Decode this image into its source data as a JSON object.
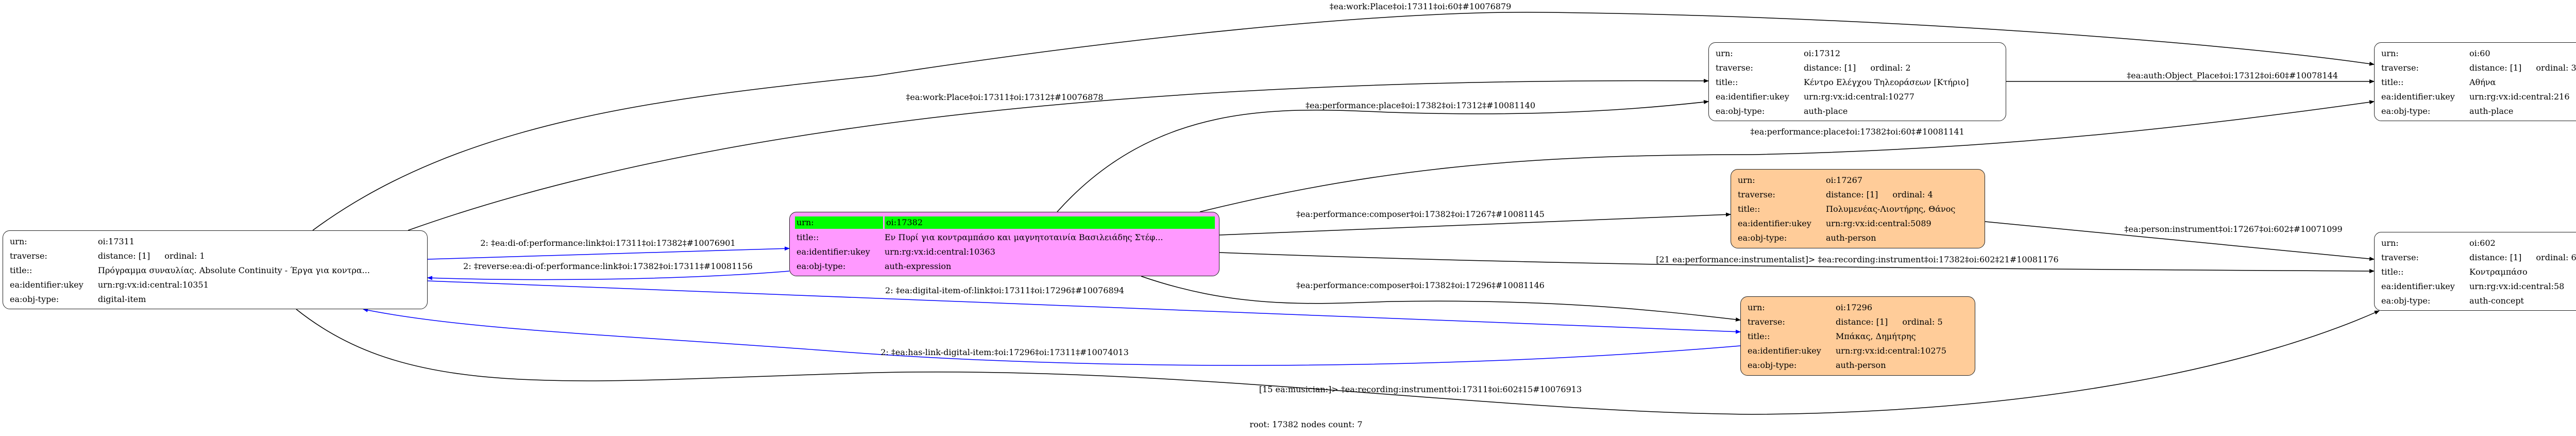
{
  "colors": {
    "root_fill": "#ff99ff",
    "person_fill": "#ffcc99",
    "root_urn_highlight": "#00ff00",
    "link_edge": "#0000ff",
    "edge": "#000000"
  },
  "row_labels": {
    "urn": "urn:",
    "traverse": "traverse:",
    "title": "title::",
    "ukey": "ea:identifier:ukey",
    "type": "ea:obj-type:"
  },
  "nodes": {
    "n17311": {
      "urn": "oi:17311",
      "distance": "distance: [1]",
      "ordinal": "ordinal: 1",
      "title": "Πρόγραμμα συναυλίας. Absolute Continuity - Έργα για κοντρα...",
      "ukey": "urn:rg:vx:id:central:10351",
      "type": "digital-item"
    },
    "n17382": {
      "urn": "oi:17382",
      "title": "Εν Πυρί για κοντραμπάσο και μαγνητοταινία Βασιλειάδης Στέφ...",
      "ukey": "urn:rg:vx:id:central:10363",
      "type": "auth-expression"
    },
    "n17312": {
      "urn": "oi:17312",
      "distance": "distance: [1]",
      "ordinal": "ordinal: 2",
      "title": "Κέντρο Ελέγχου Τηλεοράσεων [Κτήριο]",
      "ukey": "urn:rg:vx:id:central:10277",
      "type": "auth-place"
    },
    "n60": {
      "urn": "oi:60",
      "distance": "distance: [1]",
      "ordinal": "ordinal: 3",
      "title": "Αθήνα",
      "ukey": "urn:rg:vx:id:central:216",
      "type": "auth-place"
    },
    "n17267": {
      "urn": "oi:17267",
      "distance": "distance: [1]",
      "ordinal": "ordinal: 4",
      "title": "Πολυμενέας-Λιοντήρης, Θάνος",
      "ukey": "urn:rg:vx:id:central:5089",
      "type": "auth-person"
    },
    "n17296": {
      "urn": "oi:17296",
      "distance": "distance: [1]",
      "ordinal": "ordinal: 5",
      "title": "Μπάκας, Δημήτρης",
      "ukey": "urn:rg:vx:id:central:10275",
      "type": "auth-person"
    },
    "n602": {
      "urn": "oi:602",
      "distance": "distance: [1]",
      "ordinal": "ordinal: 6",
      "title": "Κοντραμπάσο",
      "ukey": "urn:rg:vx:id:central:58",
      "type": "auth-concept"
    }
  },
  "edges": {
    "e1": "‡ea:work:Place‡oi:17311‡oi:60‡#10076879",
    "e2": "‡ea:work:Place‡oi:17311‡oi:17312‡#10076878",
    "e3": "‡ea:performance:place‡oi:17382‡oi:17312‡#10081140",
    "e4": "‡ea:auth:Object_Place‡oi:17312‡oi:60‡#10078144",
    "e5": "‡ea:performance:place‡oi:17382‡oi:60‡#10081141",
    "e6": "2: ‡ea:di-of:performance:link‡oi:17311‡oi:17382‡#10076901",
    "e7": "2: ‡reverse:ea:di-of:performance:link‡oi:17382‡oi:17311‡#10081156",
    "e8": "2: ‡ea:digital-item-of:link‡oi:17311‡oi:17296‡#10076894",
    "e9": "2: ‡ea:has-link-digital-item:‡oi:17296‡oi:17311‡#10074013",
    "e10": "‡ea:performance:composer‡oi:17382‡oi:17267‡#10081145",
    "e11": "‡ea:performance:composer‡oi:17382‡oi:17296‡#10081146",
    "e12": "‡ea:person:instrument‡oi:17267‡oi:602‡#10071099",
    "e13": "[21 ea:performance:instrumentalist]> ‡ea:recording:instrument‡oi:17382‡oi:602‡21#10081176",
    "e14": "[15 ea:musician:]> ‡ea:recording:instrument‡oi:17311‡oi:602‡15#10076913"
  },
  "footer": "root: 17382 nodes count: 7"
}
